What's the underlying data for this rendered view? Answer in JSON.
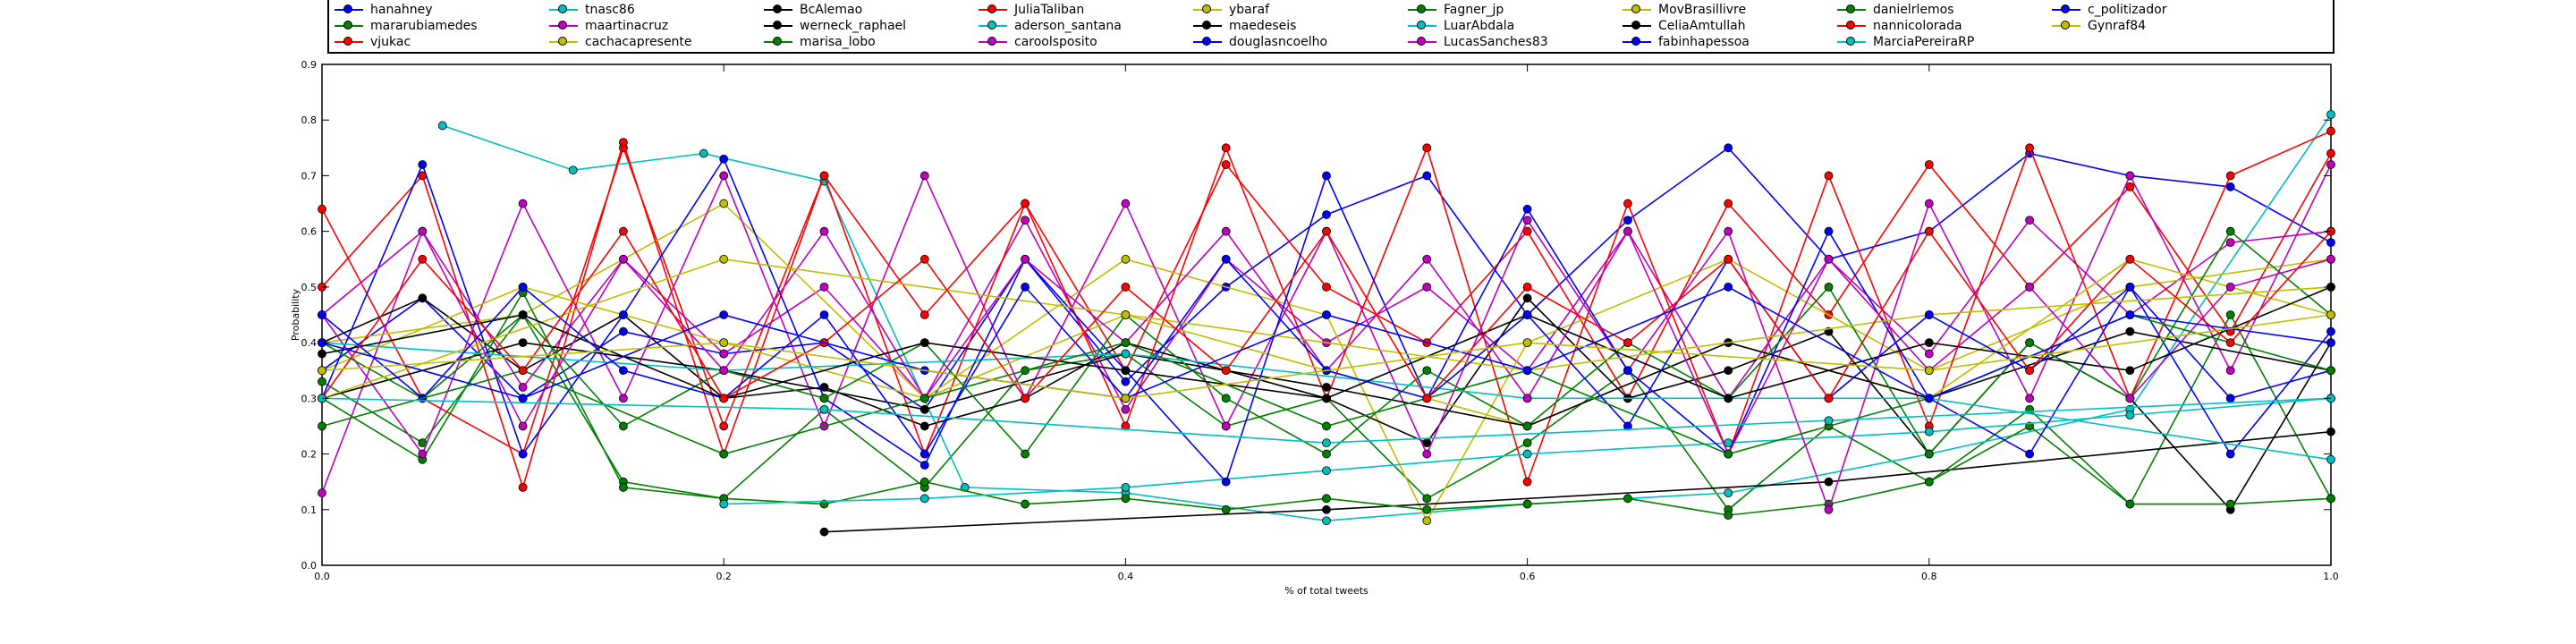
{
  "chart_data": {
    "type": "line",
    "title": "",
    "xlabel": "% of total tweets",
    "ylabel": "Probability",
    "xlim": [
      0.0,
      1.0
    ],
    "ylim": [
      0.0,
      0.9
    ],
    "xticks": [
      "0.0",
      "0.2",
      "0.4",
      "0.6",
      "0.8",
      "1.0"
    ],
    "yticks": [
      "0.0",
      "0.1",
      "0.2",
      "0.3",
      "0.4",
      "0.5",
      "0.6",
      "0.7",
      "0.8",
      "0.9"
    ],
    "grid": false,
    "legend_position": "top",
    "series": [
      {
        "name": "hanahney",
        "color": "#0000ff",
        "x": [
          0.0,
          0.05,
          0.1,
          0.15,
          0.2,
          0.25,
          0.3,
          0.35,
          0.4,
          0.45,
          0.5,
          0.55,
          0.6,
          0.65,
          0.7,
          0.75,
          0.8,
          0.85,
          0.9,
          0.95,
          1.0
        ],
        "y": [
          0.35,
          0.48,
          0.3,
          0.42,
          0.38,
          0.4,
          0.28,
          0.55,
          0.33,
          0.5,
          0.63,
          0.7,
          0.45,
          0.62,
          0.75,
          0.55,
          0.6,
          0.74,
          0.7,
          0.68,
          0.58
        ]
      },
      {
        "name": "mararubiamedes",
        "color": "#008000",
        "x": [
          0.0,
          0.05,
          0.1,
          0.15,
          0.2,
          0.25,
          0.3,
          0.35,
          0.4,
          0.45,
          0.5,
          0.55,
          0.6,
          0.65,
          0.7,
          0.75,
          0.8,
          0.85,
          0.9,
          0.95,
          1.0
        ],
        "y": [
          0.33,
          0.22,
          0.45,
          0.15,
          0.12,
          0.28,
          0.14,
          0.35,
          0.38,
          0.25,
          0.3,
          0.12,
          0.22,
          0.35,
          0.1,
          0.25,
          0.15,
          0.28,
          0.11,
          0.45,
          0.12
        ]
      },
      {
        "name": "vjukac",
        "color": "#ff0000",
        "x": [
          0.0,
          0.05,
          0.1,
          0.15,
          0.2,
          0.25,
          0.3,
          0.35,
          0.4,
          0.45,
          0.5,
          0.55,
          0.6,
          0.65,
          0.7,
          0.75,
          0.8,
          0.85,
          0.9,
          0.95,
          1.0
        ],
        "y": [
          0.64,
          0.3,
          0.2,
          0.75,
          0.25,
          0.7,
          0.45,
          0.65,
          0.35,
          0.72,
          0.5,
          0.4,
          0.6,
          0.3,
          0.65,
          0.45,
          0.72,
          0.5,
          0.68,
          0.42,
          0.74
        ]
      },
      {
        "name": "tnasc86",
        "color": "#00bfbf",
        "x": [
          0.06,
          0.125,
          0.19,
          0.25,
          0.32,
          0.4,
          0.5,
          0.6,
          0.7,
          0.8,
          0.9,
          1.0
        ],
        "y": [
          0.79,
          0.71,
          0.74,
          0.69,
          0.14,
          0.13,
          0.08,
          0.11,
          0.13,
          0.2,
          0.28,
          0.81
        ]
      },
      {
        "name": "maartinacruz",
        "color": "#bf00bf",
        "x": [
          0.0,
          0.05,
          0.1,
          0.15,
          0.2,
          0.25,
          0.3,
          0.35,
          0.4,
          0.45,
          0.5,
          0.55,
          0.6,
          0.65,
          0.7,
          0.75,
          0.8,
          0.85,
          0.9,
          0.95,
          1.0
        ],
        "y": [
          0.13,
          0.6,
          0.32,
          0.55,
          0.38,
          0.5,
          0.3,
          0.62,
          0.28,
          0.55,
          0.4,
          0.5,
          0.35,
          0.6,
          0.3,
          0.55,
          0.38,
          0.62,
          0.45,
          0.58,
          0.6
        ]
      },
      {
        "name": "cachacapresente",
        "color": "#bfbf00",
        "x": [
          0.0,
          0.1,
          0.2,
          0.3,
          0.4,
          0.5,
          0.55,
          0.6,
          0.7,
          0.8,
          0.9,
          1.0
        ],
        "y": [
          0.4,
          0.45,
          0.65,
          0.3,
          0.55,
          0.45,
          0.08,
          0.4,
          0.55,
          0.35,
          0.5,
          0.55
        ]
      },
      {
        "name": "BcAlemao",
        "color": "#000000",
        "x": [
          0.0,
          0.05,
          0.1,
          0.15,
          0.2,
          0.25,
          0.3,
          0.35,
          0.4,
          0.45,
          0.5,
          0.55,
          0.6,
          0.65,
          0.7,
          0.75,
          0.8,
          0.85,
          0.9,
          0.95,
          1.0
        ],
        "y": [
          0.4,
          0.48,
          0.35,
          0.45,
          0.3,
          0.32,
          0.25,
          0.3,
          0.4,
          0.35,
          0.3,
          0.22,
          0.48,
          0.3,
          0.35,
          0.42,
          0.2,
          0.4,
          0.3,
          0.1,
          0.4
        ]
      },
      {
        "name": "werneck_raphael",
        "color": "#000000",
        "x": [
          0.25,
          0.5,
          0.75,
          1.0
        ],
        "y": [
          0.06,
          0.1,
          0.15,
          0.24
        ]
      },
      {
        "name": "marisa_lobo",
        "color": "#008000",
        "x": [
          0.0,
          0.05,
          0.1,
          0.15,
          0.2,
          0.25,
          0.3,
          0.35,
          0.4,
          0.45,
          0.5,
          0.55,
          0.6,
          0.65,
          0.7,
          0.75,
          0.8,
          0.85,
          0.9,
          0.95,
          1.0
        ],
        "y": [
          0.3,
          0.19,
          0.49,
          0.14,
          0.12,
          0.11,
          0.15,
          0.11,
          0.12,
          0.1,
          0.12,
          0.1,
          0.11,
          0.12,
          0.09,
          0.11,
          0.15,
          0.25,
          0.11,
          0.11,
          0.12
        ]
      },
      {
        "name": "JuliaTaliban",
        "color": "#ff0000",
        "x": [
          0.0,
          0.05,
          0.1,
          0.15,
          0.2,
          0.25,
          0.3,
          0.35,
          0.4,
          0.45,
          0.5,
          0.55,
          0.6,
          0.65,
          0.7,
          0.75,
          0.8,
          0.85,
          0.9,
          0.95,
          1.0
        ],
        "y": [
          0.5,
          0.7,
          0.14,
          0.76,
          0.2,
          0.7,
          0.2,
          0.65,
          0.25,
          0.75,
          0.3,
          0.75,
          0.15,
          0.65,
          0.2,
          0.7,
          0.25,
          0.75,
          0.3,
          0.7,
          0.78
        ]
      },
      {
        "name": "aderson_santana",
        "color": "#00bfbf",
        "x": [
          0.2,
          0.3,
          0.4,
          0.5,
          0.6,
          0.7,
          0.8,
          0.9,
          1.0
        ],
        "y": [
          0.11,
          0.12,
          0.14,
          0.17,
          0.2,
          0.22,
          0.24,
          0.27,
          0.3
        ]
      },
      {
        "name": "caroolsposito",
        "color": "#bf00bf",
        "x": [
          0.0,
          0.05,
          0.1,
          0.15,
          0.2,
          0.25,
          0.3,
          0.35,
          0.4,
          0.45,
          0.5,
          0.55,
          0.6,
          0.65,
          0.7,
          0.75,
          0.8,
          0.85,
          0.9,
          0.95,
          1.0
        ],
        "y": [
          0.45,
          0.2,
          0.65,
          0.3,
          0.7,
          0.25,
          0.7,
          0.3,
          0.65,
          0.25,
          0.6,
          0.2,
          0.62,
          0.35,
          0.6,
          0.1,
          0.65,
          0.3,
          0.7,
          0.35,
          0.72
        ]
      },
      {
        "name": "ybaraf",
        "color": "#bfbf00",
        "x": [
          0.0,
          0.1,
          0.2,
          0.3,
          0.4,
          0.5,
          0.6,
          0.7,
          0.8,
          0.9,
          1.0
        ],
        "y": [
          0.35,
          0.5,
          0.4,
          0.3,
          0.45,
          0.35,
          0.25,
          0.4,
          0.3,
          0.55,
          0.45
        ]
      },
      {
        "name": "maedeseis",
        "color": "#000000",
        "x": [
          0.0,
          0.1,
          0.2,
          0.3,
          0.4,
          0.5,
          0.6,
          0.7,
          0.8,
          0.9,
          1.0
        ],
        "y": [
          0.3,
          0.4,
          0.35,
          0.28,
          0.38,
          0.32,
          0.25,
          0.4,
          0.3,
          0.42,
          0.35
        ]
      },
      {
        "name": "douglasncoelho",
        "color": "#0000ff",
        "x": [
          0.0,
          0.05,
          0.1,
          0.15,
          0.2,
          0.25,
          0.3,
          0.35,
          0.4,
          0.45,
          0.5,
          0.55,
          0.6,
          0.65,
          0.7,
          0.75,
          0.8,
          0.85,
          0.9,
          0.95,
          1.0
        ],
        "y": [
          0.3,
          0.72,
          0.2,
          0.45,
          0.73,
          0.3,
          0.18,
          0.55,
          0.35,
          0.15,
          0.7,
          0.3,
          0.64,
          0.35,
          0.2,
          0.6,
          0.3,
          0.2,
          0.5,
          0.2,
          0.42
        ]
      },
      {
        "name": "Fagner_jp",
        "color": "#008000",
        "x": [
          0.0,
          0.05,
          0.1,
          0.15,
          0.2,
          0.25,
          0.3,
          0.35,
          0.4,
          0.45,
          0.5,
          0.55,
          0.6,
          0.65,
          0.7,
          0.75,
          0.8,
          0.85,
          0.9,
          0.95,
          1.0
        ],
        "y": [
          0.4,
          0.3,
          0.45,
          0.25,
          0.35,
          0.3,
          0.4,
          0.2,
          0.45,
          0.3,
          0.2,
          0.35,
          0.25,
          0.4,
          0.3,
          0.5,
          0.2,
          0.4,
          0.3,
          0.6,
          0.45
        ]
      },
      {
        "name": "LuarAbdala",
        "color": "#00bfbf",
        "x": [
          0.0,
          0.2,
          0.4,
          0.6,
          0.8,
          1.0
        ],
        "y": [
          0.4,
          0.35,
          0.38,
          0.3,
          0.3,
          0.19
        ]
      },
      {
        "name": "LucasSanches83",
        "color": "#bf00bf",
        "x": [
          0.0,
          0.05,
          0.1,
          0.15,
          0.2,
          0.25,
          0.3,
          0.35,
          0.4,
          0.45,
          0.5,
          0.55,
          0.6,
          0.65,
          0.7,
          0.75,
          0.8,
          0.85,
          0.9,
          0.95,
          1.0
        ],
        "y": [
          0.45,
          0.6,
          0.25,
          0.55,
          0.35,
          0.6,
          0.3,
          0.55,
          0.4,
          0.6,
          0.35,
          0.55,
          0.3,
          0.6,
          0.2,
          0.55,
          0.35,
          0.5,
          0.3,
          0.5,
          0.55
        ]
      },
      {
        "name": "MovBrasillivre",
        "color": "#bfbf00",
        "x": [
          0.0,
          0.2,
          0.4,
          0.6,
          0.8,
          1.0
        ],
        "y": [
          0.3,
          0.55,
          0.45,
          0.35,
          0.45,
          0.5
        ]
      },
      {
        "name": "CeliaAmtullah",
        "color": "#000000",
        "x": [
          0.0,
          0.1,
          0.2,
          0.3,
          0.4,
          0.5,
          0.6,
          0.7,
          0.8,
          0.9,
          1.0
        ],
        "y": [
          0.38,
          0.45,
          0.3,
          0.4,
          0.35,
          0.3,
          0.45,
          0.3,
          0.4,
          0.35,
          0.5
        ]
      },
      {
        "name": "fabinhapessoa",
        "color": "#0000ff",
        "x": [
          0.0,
          0.05,
          0.1,
          0.15,
          0.2,
          0.25,
          0.3,
          0.35,
          0.4,
          0.45,
          0.5,
          0.55,
          0.6,
          0.65,
          0.7,
          0.75,
          0.8,
          0.85,
          0.9,
          0.95,
          1.0
        ],
        "y": [
          0.45,
          0.3,
          0.5,
          0.35,
          0.3,
          0.45,
          0.2,
          0.5,
          0.3,
          0.55,
          0.35,
          0.3,
          0.45,
          0.25,
          0.55,
          0.3,
          0.45,
          0.35,
          0.5,
          0.3,
          0.35
        ]
      },
      {
        "name": "danielrlemos",
        "color": "#008000",
        "x": [
          0.0,
          0.1,
          0.2,
          0.3,
          0.4,
          0.5,
          0.6,
          0.7,
          0.8,
          0.9,
          1.0
        ],
        "y": [
          0.25,
          0.35,
          0.2,
          0.3,
          0.4,
          0.25,
          0.35,
          0.2,
          0.3,
          0.45,
          0.35
        ]
      },
      {
        "name": "nannicolorada",
        "color": "#ff0000",
        "x": [
          0.0,
          0.05,
          0.1,
          0.15,
          0.2,
          0.25,
          0.3,
          0.35,
          0.4,
          0.45,
          0.5,
          0.55,
          0.6,
          0.65,
          0.7,
          0.75,
          0.8,
          0.85,
          0.9,
          0.95,
          1.0
        ],
        "y": [
          0.3,
          0.55,
          0.35,
          0.6,
          0.3,
          0.4,
          0.55,
          0.3,
          0.5,
          0.35,
          0.6,
          0.3,
          0.5,
          0.4,
          0.55,
          0.3,
          0.6,
          0.35,
          0.55,
          0.4,
          0.6
        ]
      },
      {
        "name": "MarciaPereiraRP",
        "color": "#00bfbf",
        "x": [
          0.0,
          0.25,
          0.5,
          0.75,
          1.0
        ],
        "y": [
          0.3,
          0.28,
          0.22,
          0.26,
          0.3
        ]
      },
      {
        "name": "c_politizador",
        "color": "#0000ff",
        "x": [
          0.0,
          0.1,
          0.2,
          0.3,
          0.4,
          0.5,
          0.6,
          0.7,
          0.8,
          0.9,
          1.0
        ],
        "y": [
          0.4,
          0.3,
          0.45,
          0.35,
          0.3,
          0.45,
          0.35,
          0.5,
          0.3,
          0.45,
          0.4
        ]
      },
      {
        "name": "Gynraf84",
        "color": "#bfbf00",
        "x": [
          0.0,
          0.2,
          0.4,
          0.6,
          0.8,
          1.0
        ],
        "y": [
          0.35,
          0.4,
          0.3,
          0.4,
          0.35,
          0.45
        ]
      }
    ]
  }
}
